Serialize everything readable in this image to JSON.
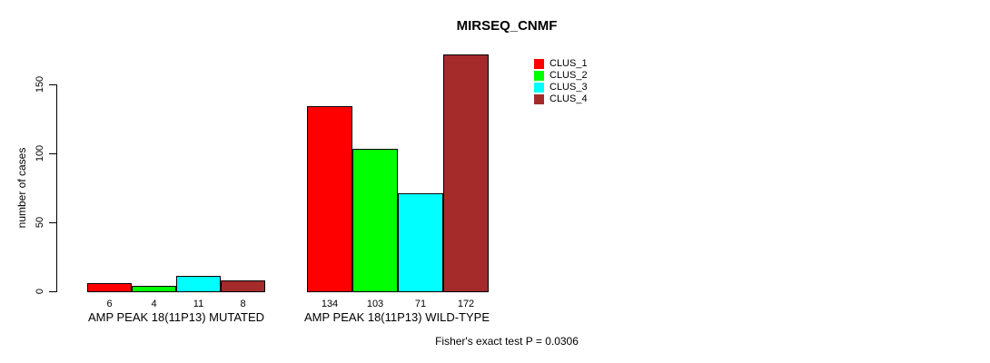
{
  "chart_data": {
    "type": "bar",
    "title": "MIRSEQ_CNMF",
    "xlabel": "",
    "ylabel": "number of cases",
    "ylim": [
      0,
      172
    ],
    "yticks": [
      0,
      50,
      100,
      150
    ],
    "grid": false,
    "legend_position": "top-right",
    "categories": [
      "AMP PEAK 18(11P13) MUTATED",
      "AMP PEAK 18(11P13) WILD-TYPE"
    ],
    "series": [
      {
        "name": "CLUS_1",
        "color": "#FF0000",
        "values": [
          6,
          134
        ]
      },
      {
        "name": "CLUS_2",
        "color": "#00FF00",
        "values": [
          4,
          103
        ]
      },
      {
        "name": "CLUS_3",
        "color": "#00FFFF",
        "values": [
          11,
          71
        ]
      },
      {
        "name": "CLUS_4",
        "color": "#A52A2A",
        "values": [
          8,
          172
        ]
      }
    ],
    "bar_value_labels": [
      [
        6,
        4,
        11,
        8
      ],
      [
        134,
        103,
        71,
        172
      ]
    ],
    "annotation": "Fisher's exact test P = 0.0306"
  }
}
